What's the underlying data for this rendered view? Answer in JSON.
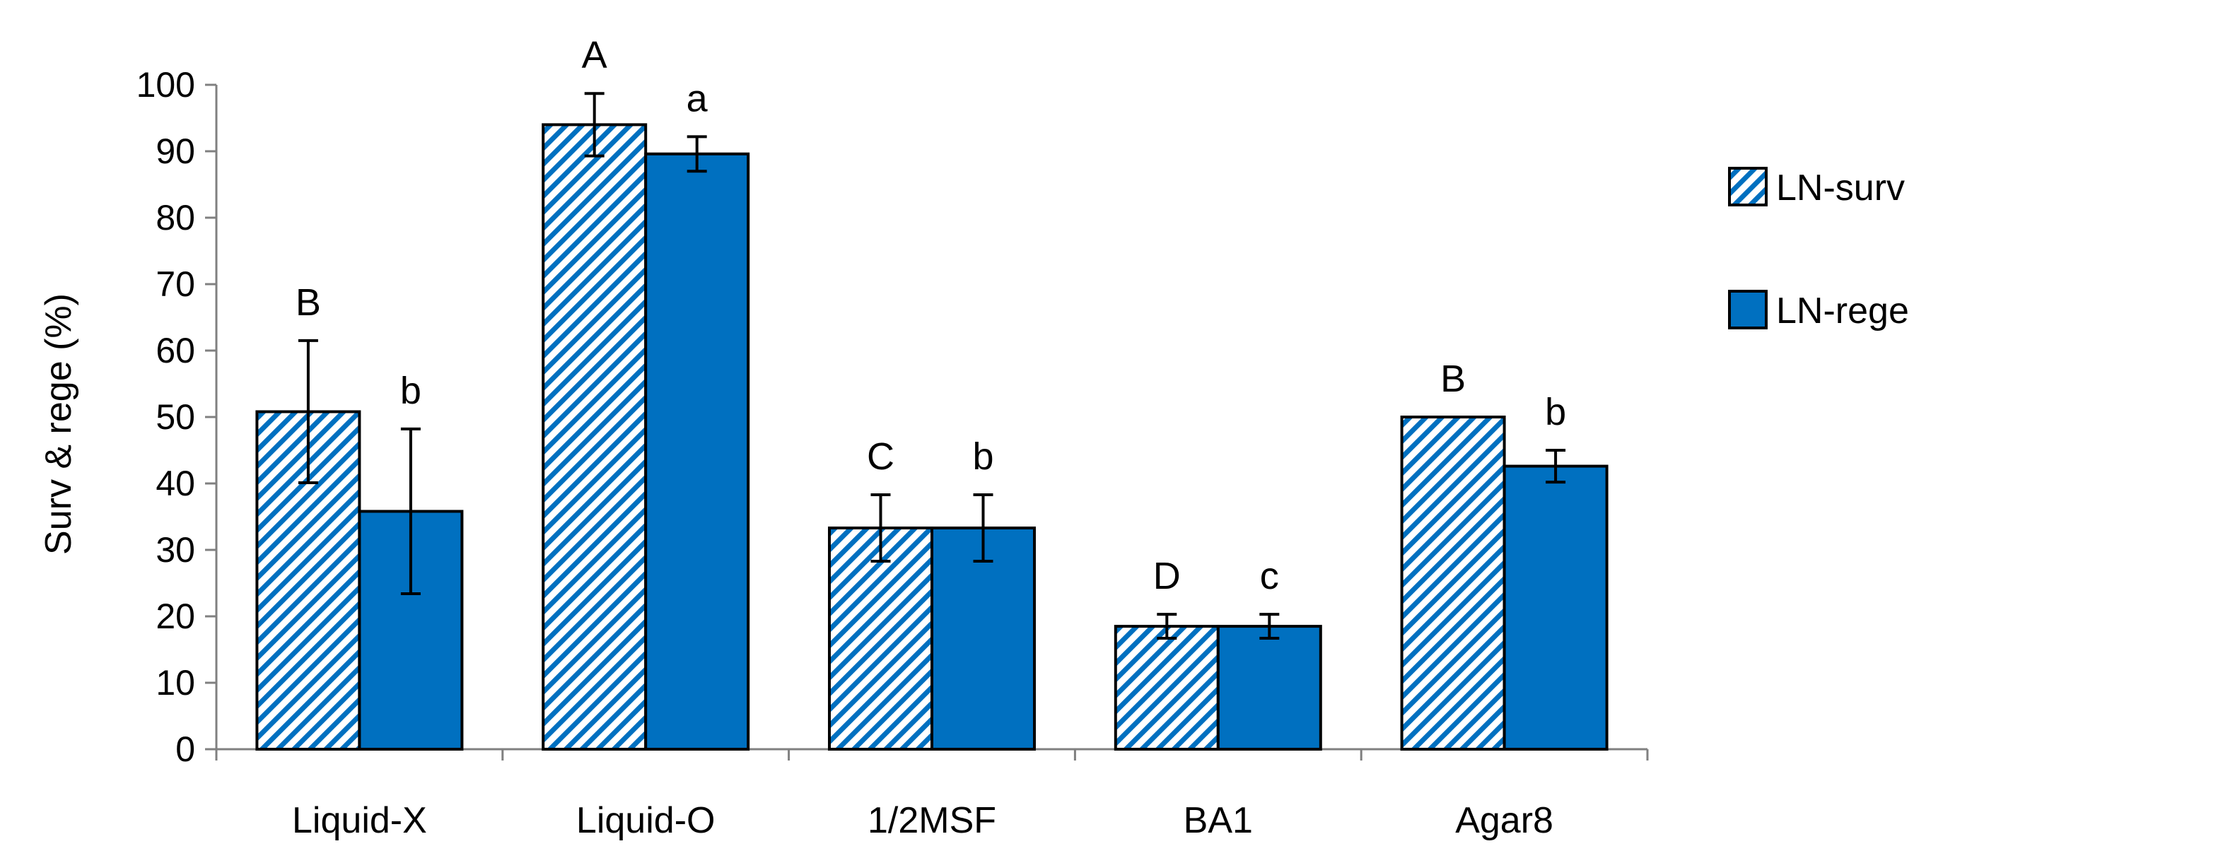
{
  "chart_data": {
    "type": "bar",
    "title": "",
    "xlabel": "",
    "ylabel": "Surv & rege (%)",
    "ylim": [
      0,
      100
    ],
    "yticks": [
      0,
      10,
      20,
      30,
      40,
      50,
      60,
      70,
      80,
      90,
      100
    ],
    "grid": false,
    "legend_position": "right",
    "categories": [
      "Liquid-X",
      "Liquid-O",
      "1/2MSF",
      "BA1",
      "Agar8"
    ],
    "series": [
      {
        "name": "LN-surv",
        "pattern": "diagonal-hatch",
        "color": "#0070C0",
        "values": [
          50.8,
          94.0,
          33.3,
          18.5,
          50.0
        ],
        "errors": [
          10.7,
          4.7,
          5.0,
          1.8,
          0
        ],
        "significance": [
          "B",
          "A",
          "C",
          "D",
          "B"
        ]
      },
      {
        "name": "LN-rege",
        "pattern": "solid",
        "color": "#0070C0",
        "values": [
          35.8,
          89.6,
          33.3,
          18.5,
          42.6
        ],
        "errors": [
          12.4,
          2.6,
          5.0,
          1.8,
          2.4
        ],
        "significance": [
          "b",
          "a",
          "b",
          "c",
          "b"
        ]
      }
    ]
  }
}
